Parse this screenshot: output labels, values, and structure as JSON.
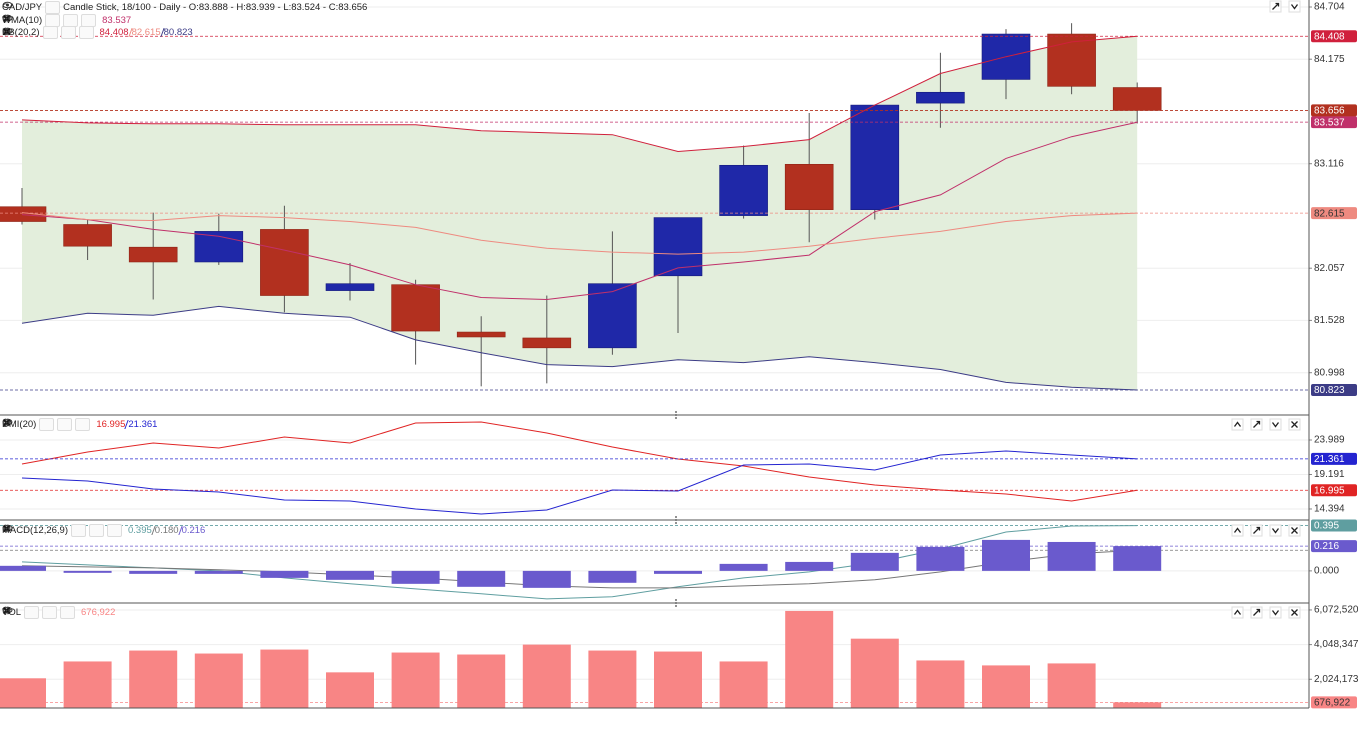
{
  "chart_data": [
    {
      "type": "candlestick",
      "title": "CAD/JPY",
      "subtitle": "Candle Stick, 18/100 - Daily - O:83.888 - H:83.939 - L:83.524 - C:83.656",
      "open": [
        82.68,
        82.5,
        82.27,
        82.12,
        82.45,
        81.83,
        81.89,
        81.41,
        81.35,
        81.25,
        81.98,
        82.59,
        83.11,
        82.65,
        83.73,
        83.97,
        84.43,
        83.888
      ],
      "high": [
        82.87,
        82.55,
        82.62,
        82.61,
        82.69,
        82.11,
        81.94,
        81.57,
        81.78,
        82.43,
        82.57,
        83.3,
        83.63,
        83.71,
        84.24,
        84.48,
        84.54,
        83.939
      ],
      "low": [
        82.5,
        82.14,
        81.74,
        82.09,
        81.61,
        81.73,
        81.08,
        80.86,
        80.89,
        81.18,
        81.4,
        82.56,
        82.32,
        82.55,
        83.48,
        83.77,
        83.82,
        83.524
      ],
      "close": [
        82.53,
        82.28,
        82.12,
        82.43,
        81.78,
        81.9,
        81.42,
        81.36,
        81.25,
        81.9,
        82.57,
        83.1,
        82.65,
        83.71,
        83.84,
        84.43,
        83.9,
        83.656
      ],
      "up_color": "#1f28a8",
      "down_color": "#b2301f",
      "series": [
        {
          "name": "WMA(10)",
          "color": "#c0306a",
          "values": [
            82.6,
            82.55,
            82.45,
            82.38,
            82.24,
            82.09,
            81.89,
            81.76,
            81.74,
            81.82,
            82.06,
            82.12,
            82.19,
            82.63,
            82.8,
            83.17,
            83.39,
            83.537
          ]
        },
        {
          "name": "BB(20,2)",
          "fill": "#e3eedc",
          "lines": [
            {
              "color": "#d0203c",
              "values": [
                83.56,
                83.53,
                83.52,
                83.52,
                83.51,
                83.51,
                83.51,
                83.45,
                83.43,
                83.41,
                83.24,
                83.29,
                83.36,
                83.71,
                84.03,
                84.2,
                84.35,
                84.408
              ]
            },
            {
              "color": "#ee8a80",
              "values": [
                82.62,
                82.55,
                82.54,
                82.59,
                82.57,
                82.53,
                82.47,
                82.34,
                82.26,
                82.22,
                82.2,
                82.22,
                82.28,
                82.36,
                82.43,
                82.53,
                82.59,
                82.615
              ]
            },
            {
              "color": "#3c3c86",
              "values": [
                81.5,
                81.6,
                81.58,
                81.67,
                81.6,
                81.56,
                81.33,
                81.2,
                81.08,
                81.06,
                81.13,
                81.1,
                81.16,
                81.1,
                81.03,
                80.9,
                80.85,
                80.823
              ]
            }
          ]
        }
      ],
      "ylim": [
        80.62,
        84.775
      ],
      "yticks": [
        84.704,
        84.175,
        83.116,
        82.057,
        81.528,
        80.998
      ],
      "grid": true
    },
    {
      "type": "line",
      "title": "DMI(20)",
      "series": [
        {
          "color": "#e02424",
          "values": [
            20.65,
            22.32,
            23.57,
            22.88,
            24.41,
            23.57,
            26.35,
            26.49,
            24.96,
            23.02,
            21.35,
            20.37,
            18.84,
            17.73,
            17.03,
            16.48,
            15.5,
            16.995
          ]
        },
        {
          "color": "#2424d0",
          "values": [
            18.7,
            18.29,
            17.17,
            16.76,
            15.64,
            15.5,
            14.39,
            13.7,
            14.25,
            17.03,
            16.89,
            20.51,
            20.65,
            19.82,
            21.9,
            22.46,
            21.9,
            21.361
          ]
        }
      ],
      "ylim": [
        12.86,
        27.33
      ],
      "yticks": [
        23.989,
        19.191,
        14.394
      ],
      "grid": true
    },
    {
      "type": "combo",
      "title": "MACD(12,26,9)",
      "series": [
        {
          "color": "#5f9ea0",
          "values": [
            0.078,
            0.052,
            0.026,
            0,
            -0.061,
            -0.113,
            -0.157,
            -0.2,
            -0.244,
            -0.226,
            -0.139,
            -0.061,
            -0.009,
            0.07,
            0.191,
            0.339,
            0.391,
            0.395
          ]
        },
        {
          "color": "#777777",
          "price_box": false,
          "values": [
            0.044,
            0.035,
            0.026,
            0.009,
            -0.009,
            -0.035,
            -0.061,
            -0.096,
            -0.131,
            -0.148,
            -0.148,
            -0.131,
            -0.113,
            -0.078,
            -0.009,
            0.078,
            0.148,
            0.18
          ],
          "value_labels": [
            null,
            null,
            null,
            null,
            null,
            null,
            null,
            null,
            null,
            null,
            null,
            null,
            null,
            null,
            null,
            null,
            null,
            "0.180"
          ]
        },
        {
          "type": "bar",
          "color": "#6a5acd",
          "values": [
            0.044,
            -0.017,
            -0.026,
            -0.026,
            -0.061,
            -0.078,
            -0.113,
            -0.139,
            -0.148,
            -0.104,
            -0.026,
            0.061,
            0.078,
            0.157,
            0.209,
            0.27,
            0.252,
            0.216
          ]
        }
      ],
      "ylim": [
        -0.28,
        0.426
      ],
      "yticks": [
        {
          "value": 0,
          "label": "0.000"
        }
      ],
      "grid": true
    },
    {
      "type": "bar",
      "title": "VOL",
      "series": [
        {
          "color": "#f88585",
          "values": [
            2082000,
            3065000,
            3701000,
            3527000,
            3759000,
            2429000,
            3585000,
            3470000,
            4048000,
            3701000,
            3643000,
            3065000,
            6015000,
            4395000,
            3123000,
            2834000,
            2950000,
            676922
          ],
          "value_labels": [
            null,
            null,
            null,
            null,
            null,
            null,
            null,
            null,
            null,
            null,
            null,
            null,
            null,
            null,
            null,
            null,
            null,
            "676,922"
          ]
        }
      ],
      "ylim": [
        347000,
        6419500
      ],
      "yticks": [
        {
          "value": 6072520,
          "label": "6,072,520"
        },
        {
          "value": 4048347,
          "label": "4,048,347"
        },
        {
          "value": 2024173,
          "label": "2,024,173"
        }
      ],
      "grid": true
    }
  ]
}
